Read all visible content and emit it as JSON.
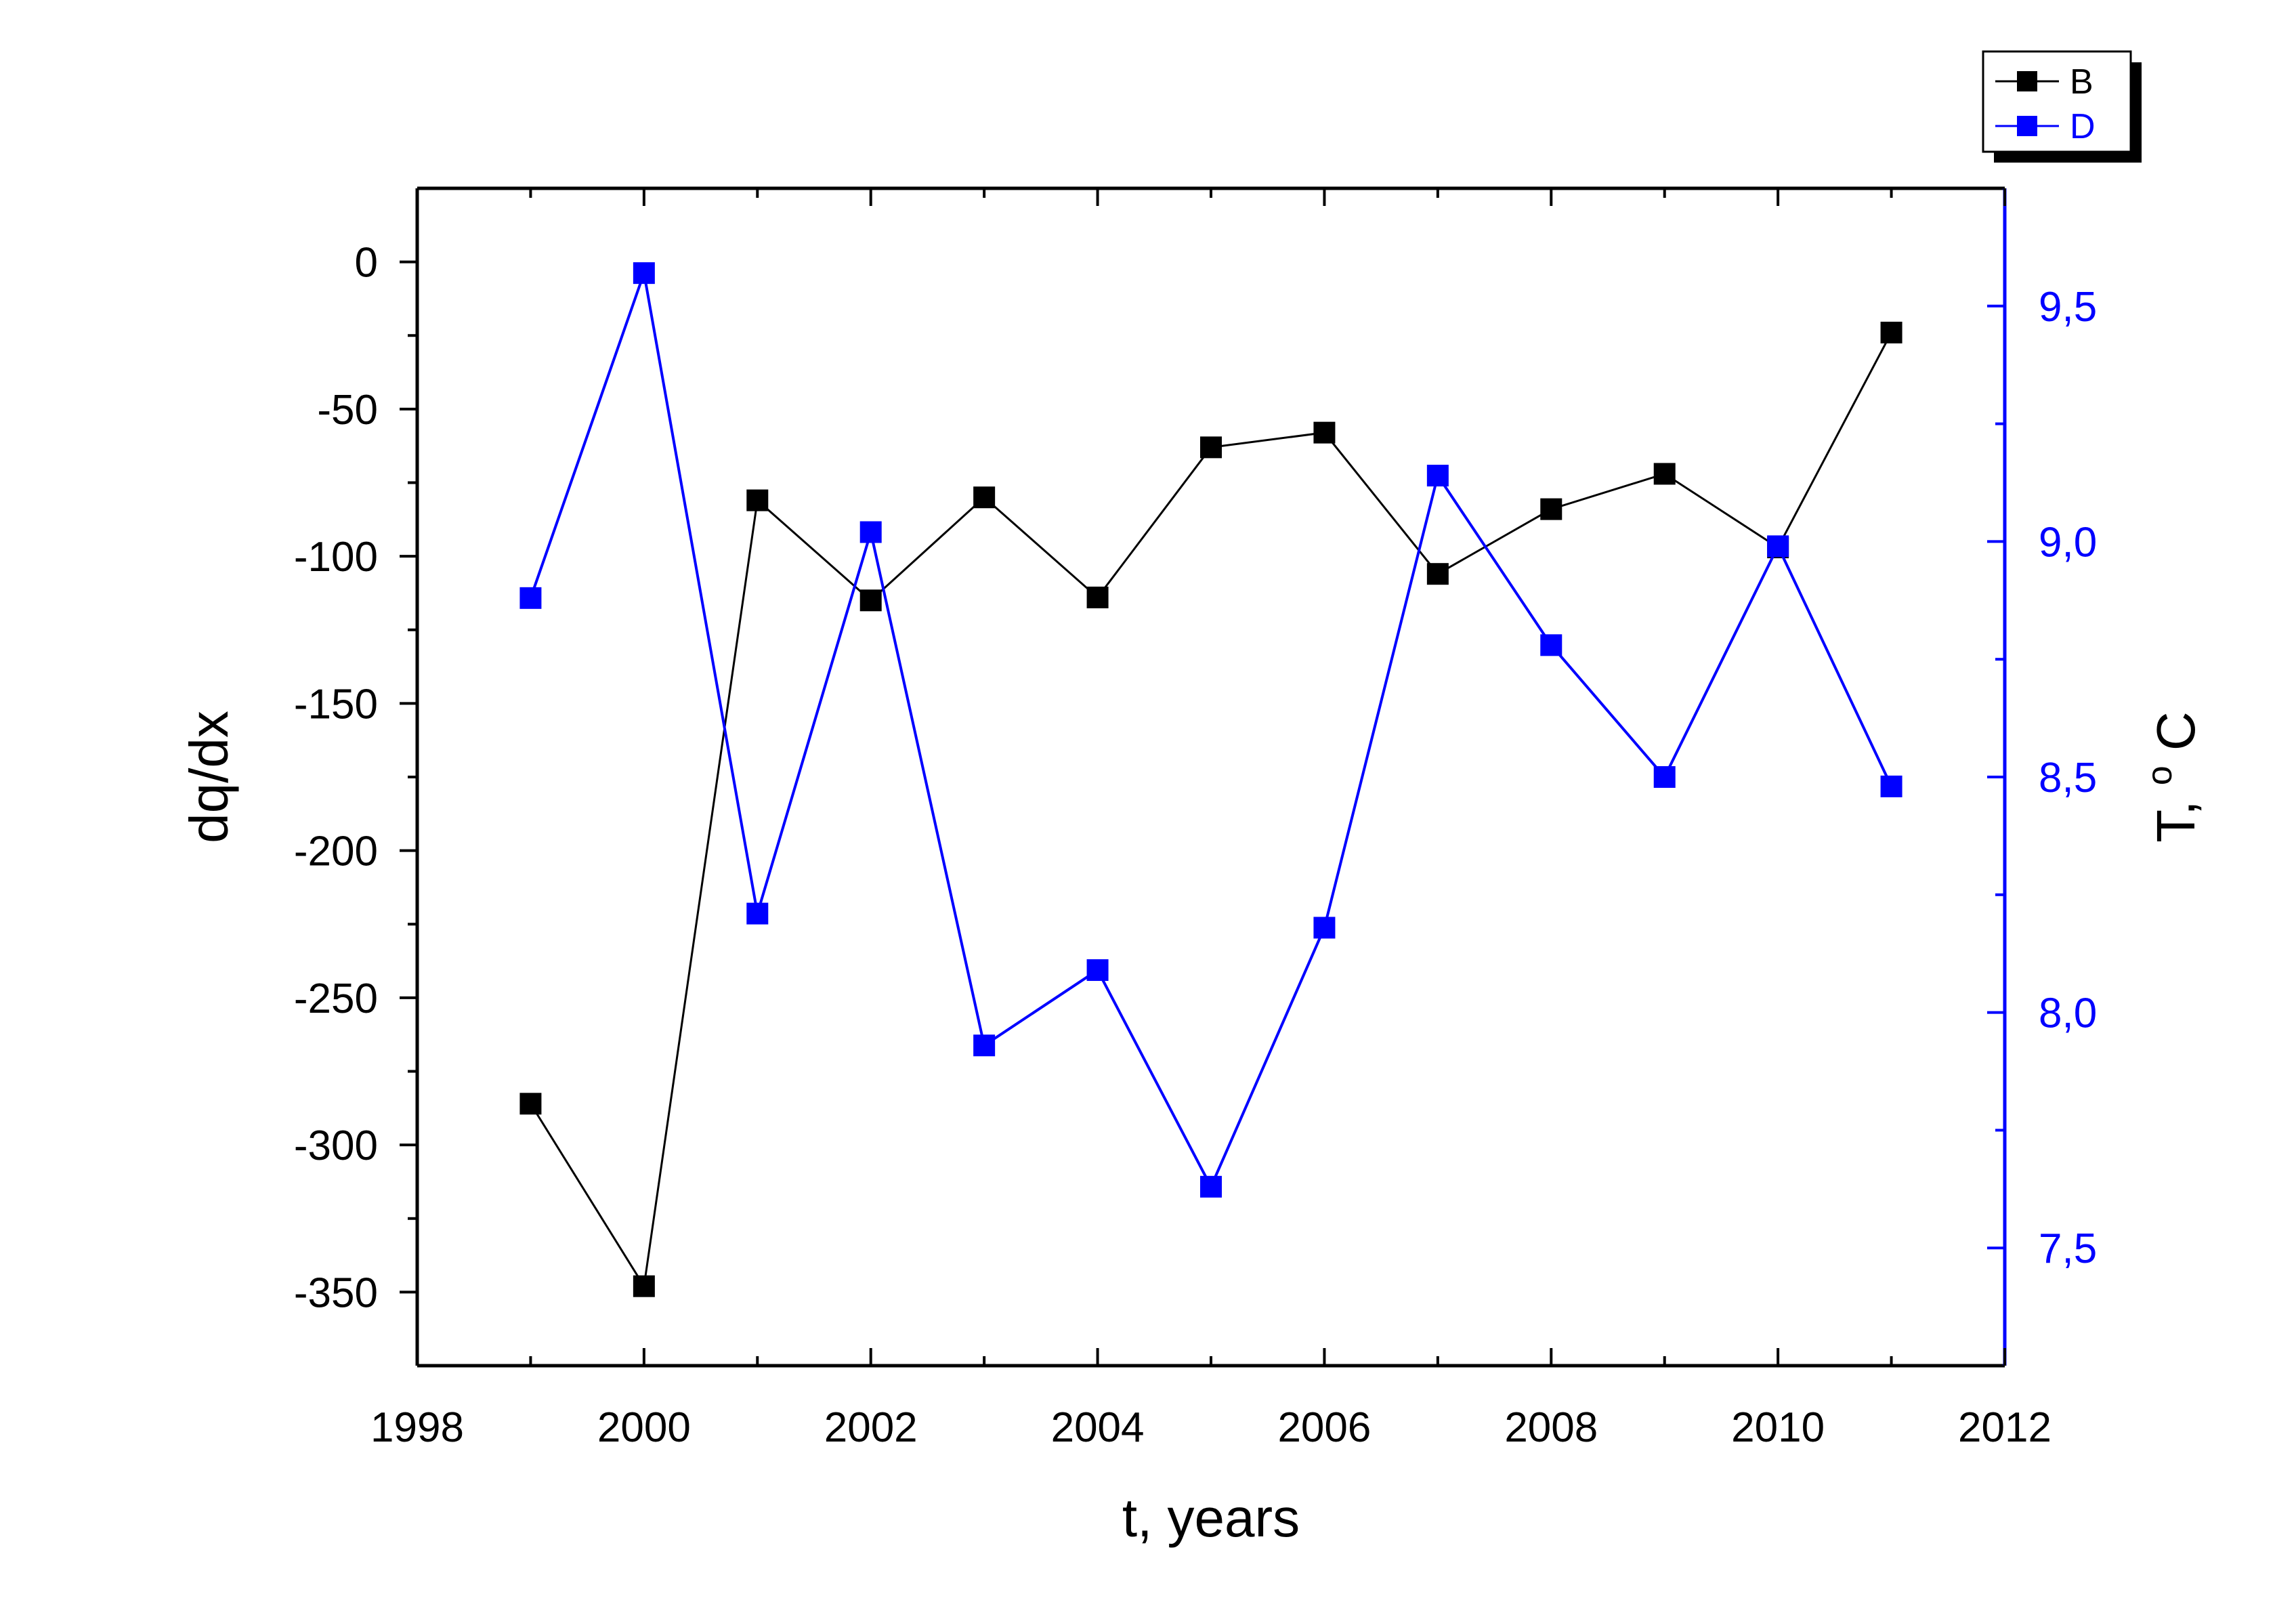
{
  "chart_data": {
    "type": "line",
    "title": "",
    "xlabel": "t, years",
    "ylabel_left": "dq/dx",
    "ylabel_right": {
      "base": "T, ",
      "superscript": "o",
      "unit": "C"
    },
    "xlim": [
      1998,
      2012
    ],
    "ylim_left": [
      -375,
      25
    ],
    "ylim_right": [
      7.25,
      9.75
    ],
    "x_ticks": [
      1998,
      2000,
      2002,
      2004,
      2006,
      2008,
      2010,
      2012
    ],
    "x_minor_ticks": [
      1999,
      2001,
      2003,
      2005,
      2007,
      2009,
      2011
    ],
    "y_left_ticks": [
      0,
      -50,
      -100,
      -150,
      -200,
      -250,
      -300,
      -350
    ],
    "y_left_tick_labels": [
      "0",
      "-50",
      "-100",
      "-150",
      "-200",
      "-250",
      "-300",
      "-350"
    ],
    "y_left_minor_ticks": [
      -25,
      -75,
      -125,
      -175,
      -225,
      -275,
      -325
    ],
    "y_right_ticks": [
      7.5,
      8.0,
      8.5,
      9.0,
      9.5
    ],
    "y_right_tick_labels": [
      "7,5",
      "8,0",
      "8,5",
      "9,0",
      "9,5"
    ],
    "y_right_minor_ticks": [
      7.75,
      8.25,
      8.75,
      9.25
    ],
    "x": [
      1999,
      2000,
      2001,
      2002,
      2003,
      2004,
      2005,
      2006,
      2007,
      2008,
      2009,
      2010,
      2011
    ],
    "series": [
      {
        "name": "B",
        "axis": "left",
        "color": "#000000",
        "values": [
          -286,
          -348,
          -81,
          -115,
          -80,
          -114,
          -63,
          -58,
          -106,
          -84,
          -72,
          -97,
          -24
        ]
      },
      {
        "name": "D",
        "axis": "right",
        "color": "#0000ff",
        "values": [
          8.88,
          9.57,
          8.21,
          9.02,
          7.93,
          8.09,
          7.63,
          8.18,
          9.14,
          8.78,
          8.5,
          8.99,
          8.48
        ]
      }
    ],
    "legend_position": "top-right",
    "grid": false,
    "colors": {
      "axis": "#000000",
      "right_axis": "#0000ff"
    }
  }
}
